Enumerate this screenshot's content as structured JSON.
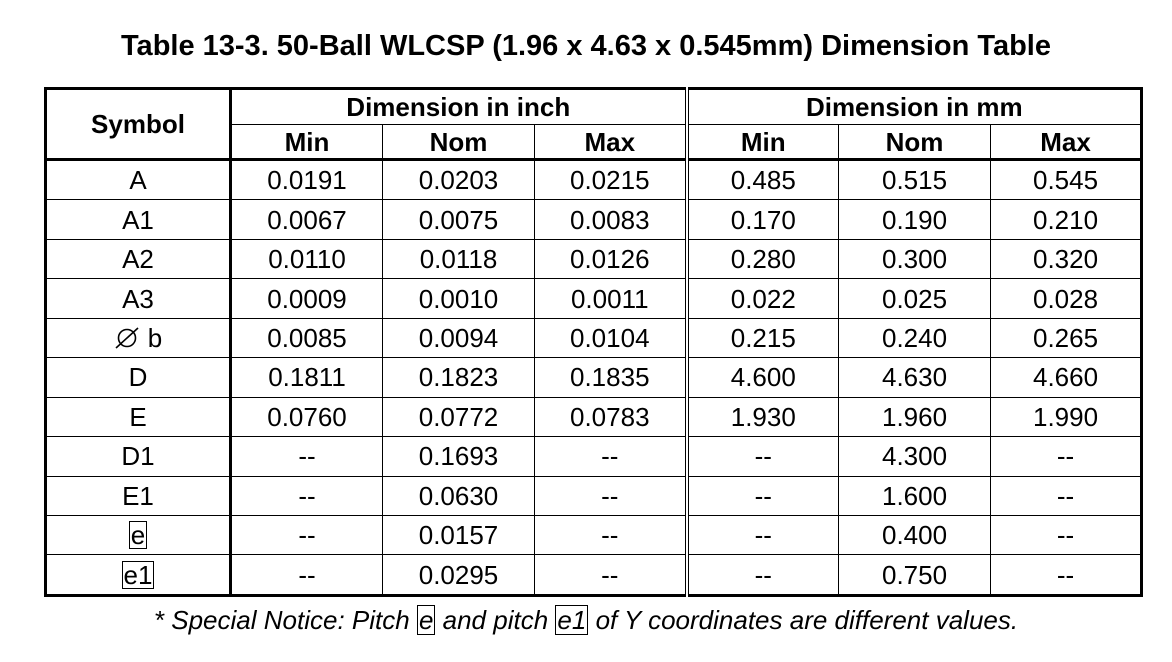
{
  "title": "Table 13-3. 50-Ball WLCSP (1.96 x 4.63 x 0.545mm) Dimension Table",
  "header": {
    "symbol": "Symbol",
    "group_inch": "Dimension in inch",
    "group_mm": "Dimension in mm",
    "sub": [
      "Min",
      "Nom",
      "Max",
      "Min",
      "Nom",
      "Max"
    ]
  },
  "rows": [
    {
      "symbol": "A",
      "values": [
        "0.0191",
        "0.0203",
        "0.0215",
        "0.485",
        "0.515",
        "0.545"
      ]
    },
    {
      "symbol": "A1",
      "values": [
        "0.0067",
        "0.0075",
        "0.0083",
        "0.170",
        "0.190",
        "0.210"
      ]
    },
    {
      "symbol": "A2",
      "values": [
        "0.0110",
        "0.0118",
        "0.0126",
        "0.280",
        "0.300",
        "0.320"
      ]
    },
    {
      "symbol": "A3",
      "values": [
        "0.0009",
        "0.0010",
        "0.0011",
        "0.022",
        "0.025",
        "0.028"
      ]
    },
    {
      "symbol": "b",
      "symbol_icon": "diameter-icon",
      "values": [
        "0.0085",
        "0.0094",
        "0.0104",
        "0.215",
        "0.240",
        "0.265"
      ]
    },
    {
      "symbol": "D",
      "values": [
        "0.1811",
        "0.1823",
        "0.1835",
        "4.600",
        "4.630",
        "4.660"
      ]
    },
    {
      "symbol": "E",
      "values": [
        "0.0760",
        "0.0772",
        "0.0783",
        "1.930",
        "1.960",
        "1.990"
      ]
    },
    {
      "symbol": "D1",
      "values": [
        "--",
        "0.1693",
        "--",
        "--",
        "4.300",
        "--"
      ]
    },
    {
      "symbol": "E1",
      "values": [
        "--",
        "0.0630",
        "--",
        "--",
        "1.600",
        "--"
      ]
    },
    {
      "symbol": "e",
      "boxed": true,
      "values": [
        "--",
        "0.0157",
        "--",
        "--",
        "0.400",
        "--"
      ]
    },
    {
      "symbol": "e1",
      "boxed": true,
      "values": [
        "--",
        "0.0295",
        "--",
        "--",
        "0.750",
        "--"
      ]
    }
  ],
  "notice": {
    "part1": "* Special Notice: Pitch",
    "term1": "e",
    "part2": "and pitch",
    "term2": "e1",
    "part3": "of Y coordinates are different values."
  }
}
